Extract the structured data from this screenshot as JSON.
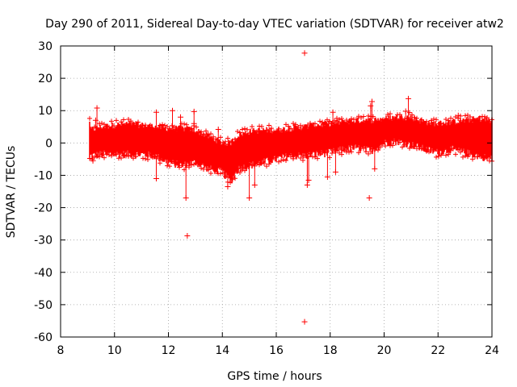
{
  "chart_data": {
    "type": "scatter",
    "title": "Day 290 of 2011, Sidereal Day-to-day VTEC variation (SDTVAR) for receiver atw2",
    "xlabel": "GPS time / hours",
    "ylabel": "SDTVAR / TECUs",
    "xlim": [
      8,
      24
    ],
    "ylim": [
      -60,
      30
    ],
    "xticks": [
      8,
      10,
      12,
      14,
      16,
      18,
      20,
      22,
      24
    ],
    "yticks": [
      -60,
      -50,
      -40,
      -30,
      -20,
      -10,
      0,
      10,
      20,
      30
    ],
    "grid": true,
    "marker": "+",
    "colors": {
      "series": "#ff0000",
      "grid": "#a0a0a0",
      "axis": "#000000"
    },
    "series": [
      {
        "name": "SDTVAR",
        "band": {
          "x_start": 9.1,
          "x_end": 24.0,
          "envelope": [
            {
              "x": 9.1,
              "lower": -4.0,
              "upper": 4.0
            },
            {
              "x": 9.5,
              "lower": -3.5,
              "upper": 5.0
            },
            {
              "x": 10.0,
              "lower": -3.5,
              "upper": 5.5
            },
            {
              "x": 10.5,
              "lower": -3.5,
              "upper": 6.0
            },
            {
              "x": 11.0,
              "lower": -3.5,
              "upper": 5.5
            },
            {
              "x": 11.5,
              "lower": -4.0,
              "upper": 5.0
            },
            {
              "x": 12.0,
              "lower": -6.0,
              "upper": 4.5
            },
            {
              "x": 12.5,
              "lower": -7.0,
              "upper": 4.5
            },
            {
              "x": 13.0,
              "lower": -6.0,
              "upper": 4.0
            },
            {
              "x": 13.5,
              "lower": -8.0,
              "upper": 2.0
            },
            {
              "x": 14.0,
              "lower": -9.0,
              "upper": 0.0
            },
            {
              "x": 14.3,
              "lower": -12.0,
              "upper": 0.0
            },
            {
              "x": 14.6,
              "lower": -8.0,
              "upper": 2.5
            },
            {
              "x": 15.0,
              "lower": -7.0,
              "upper": 3.5
            },
            {
              "x": 15.5,
              "lower": -6.0,
              "upper": 4.0
            },
            {
              "x": 16.0,
              "lower": -5.0,
              "upper": 4.0
            },
            {
              "x": 16.5,
              "lower": -4.0,
              "upper": 4.5
            },
            {
              "x": 17.0,
              "lower": -4.0,
              "upper": 5.0
            },
            {
              "x": 17.5,
              "lower": -3.5,
              "upper": 5.5
            },
            {
              "x": 18.0,
              "lower": -3.0,
              "upper": 6.0
            },
            {
              "x": 18.5,
              "lower": -2.0,
              "upper": 6.5
            },
            {
              "x": 19.0,
              "lower": -1.5,
              "upper": 7.0
            },
            {
              "x": 19.5,
              "lower": -2.5,
              "upper": 7.0
            },
            {
              "x": 20.0,
              "lower": 0.0,
              "upper": 7.5
            },
            {
              "x": 20.5,
              "lower": 0.5,
              "upper": 8.0
            },
            {
              "x": 21.0,
              "lower": -0.5,
              "upper": 8.0
            },
            {
              "x": 21.5,
              "lower": -2.0,
              "upper": 6.5
            },
            {
              "x": 22.0,
              "lower": -3.0,
              "upper": 6.0
            },
            {
              "x": 22.5,
              "lower": -2.0,
              "upper": 6.5
            },
            {
              "x": 23.0,
              "lower": -3.0,
              "upper": 7.0
            },
            {
              "x": 23.5,
              "lower": -4.0,
              "upper": 7.5
            },
            {
              "x": 24.0,
              "lower": -5.0,
              "upper": 7.0
            }
          ]
        },
        "points": [
          {
            "x": 9.35,
            "y": 10.8
          },
          {
            "x": 9.2,
            "y": -5.5
          },
          {
            "x": 9.3,
            "y": 7.0
          },
          {
            "x": 11.55,
            "y": 9.5
          },
          {
            "x": 11.55,
            "y": -11.0
          },
          {
            "x": 12.15,
            "y": 10.0
          },
          {
            "x": 12.45,
            "y": 8.0
          },
          {
            "x": 12.65,
            "y": -17.0
          },
          {
            "x": 12.7,
            "y": -28.7
          },
          {
            "x": 12.95,
            "y": 9.7
          },
          {
            "x": 12.95,
            "y": 6.0
          },
          {
            "x": 13.85,
            "y": 4.2
          },
          {
            "x": 14.2,
            "y": -13.5
          },
          {
            "x": 15.0,
            "y": -17.0
          },
          {
            "x": 15.2,
            "y": -13.0
          },
          {
            "x": 17.05,
            "y": 27.8
          },
          {
            "x": 17.05,
            "y": -55.3
          },
          {
            "x": 17.15,
            "y": -13.0
          },
          {
            "x": 17.2,
            "y": -11.5
          },
          {
            "x": 17.9,
            "y": -10.5
          },
          {
            "x": 18.1,
            "y": 9.5
          },
          {
            "x": 18.2,
            "y": -9.0
          },
          {
            "x": 19.45,
            "y": -17.0
          },
          {
            "x": 19.55,
            "y": 12.8
          },
          {
            "x": 19.5,
            "y": 11.5
          },
          {
            "x": 19.65,
            "y": -8.0
          },
          {
            "x": 20.9,
            "y": 13.7
          },
          {
            "x": 20.8,
            "y": 9.8
          },
          {
            "x": 22.75,
            "y": 8.5
          }
        ]
      }
    ]
  }
}
